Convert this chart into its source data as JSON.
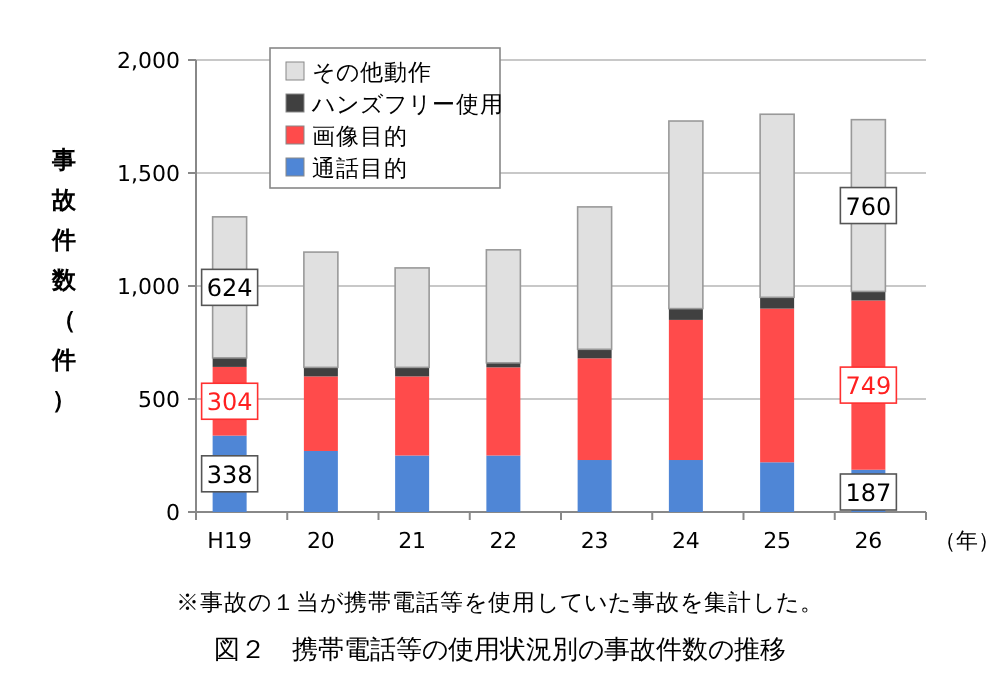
{
  "chart_data": {
    "type": "bar",
    "stacked": true,
    "ylabel": "事故件数（件）",
    "xlabel": "（年）",
    "categories": [
      "H19",
      "20",
      "21",
      "22",
      "23",
      "24",
      "25",
      "26"
    ],
    "series": [
      {
        "name": "通話目的",
        "color": "#4f86d6",
        "values": [
          338,
          270,
          250,
          250,
          230,
          230,
          220,
          187
        ],
        "value_labels": [
          "338",
          null,
          null,
          null,
          null,
          null,
          null,
          "187"
        ]
      },
      {
        "name": "画像目的",
        "color": "#ff4b4b",
        "values": [
          304,
          330,
          350,
          390,
          450,
          620,
          680,
          749
        ],
        "value_labels": [
          "304",
          null,
          null,
          null,
          null,
          null,
          null,
          "749"
        ]
      },
      {
        "name": "ハンズフリー使用",
        "color": "#404040",
        "values": [
          40,
          40,
          40,
          20,
          40,
          50,
          50,
          40
        ]
      },
      {
        "name": "その他動作",
        "color": "#e0e0e0",
        "values": [
          624,
          510,
          440,
          500,
          630,
          830,
          810,
          760
        ],
        "value_labels": [
          "624",
          null,
          null,
          null,
          null,
          null,
          null,
          "760"
        ]
      }
    ],
    "ylim": [
      0,
      2000
    ],
    "yticks": [
      0,
      {
        "value": 500,
        "label": "500"
      },
      {
        "value": 1000,
        "label": "1,000"
      },
      {
        "value": 1500,
        "label": "1,500"
      },
      {
        "value": 2000,
        "label": "2,000"
      }
    ],
    "grid": "y",
    "legend": "top left",
    "annotations": [
      "※事故の１当が携帯電話等を使用していた事故を集計した。",
      "図２　携帯電話等の使用状況別の事故件数の推移"
    ]
  }
}
